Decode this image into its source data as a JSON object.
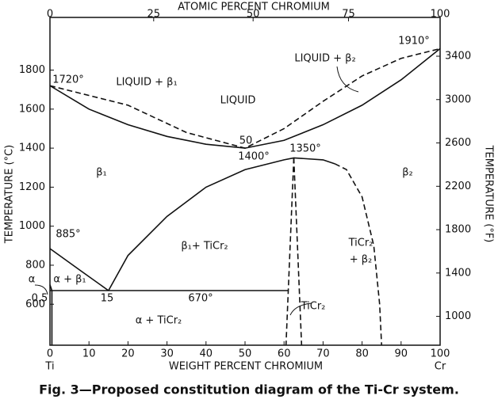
{
  "chart_data": {
    "type": "line",
    "title": "ATOMIC PERCENT CHROMIUM",
    "xlabel": "WEIGHT PERCENT CHROMIUM",
    "ylabel": "TEMPERATURE (°C)",
    "y2label": "TEMPERATURE (°F)",
    "caption": "Fig. 3—Proposed constitution diagram of the Ti-Cr system.",
    "x_end_labels": [
      "Ti",
      "Cr"
    ],
    "xlim": [
      0,
      100
    ],
    "xticks": [
      0,
      10,
      20,
      30,
      40,
      50,
      60,
      70,
      80,
      90,
      100
    ],
    "x2ticks": [
      0,
      25,
      50,
      75,
      100
    ],
    "ylim": [
      390,
      2070
    ],
    "yticks": [
      600,
      800,
      1000,
      1200,
      1400,
      1600,
      1800
    ],
    "y2lim": [
      734,
      3758
    ],
    "y2ticks": [
      1000,
      1400,
      1800,
      2200,
      2600,
      3000,
      3400
    ],
    "series": [
      {
        "color": "#111",
        "style": "solid",
        "x": [
          0,
          10,
          20,
          30,
          40,
          50,
          60,
          70,
          80,
          90,
          100
        ],
        "values": [
          1720,
          1600,
          1520,
          1460,
          1420,
          1400,
          1440,
          1520,
          1620,
          1750,
          1910
        ]
      },
      {
        "color": "#111",
        "style": "dashed",
        "x": [
          0,
          20,
          35,
          50,
          60,
          70,
          80,
          90,
          100
        ],
        "values": [
          1720,
          1620,
          1480,
          1400,
          1500,
          1640,
          1770,
          1860,
          1910
        ]
      },
      {
        "color": "#111",
        "style": "solid",
        "x": [
          15,
          20,
          30,
          40,
          50,
          60,
          62.5,
          70,
          73
        ],
        "values": [
          670,
          850,
          1050,
          1200,
          1290,
          1340,
          1350,
          1340,
          1320
        ]
      },
      {
        "color": "#111",
        "style": "dashed",
        "x": [
          73,
          76,
          80,
          83,
          84.5,
          85
        ],
        "values": [
          1320,
          1290,
          1150,
          900,
          600,
          390
        ]
      },
      {
        "color": "#111",
        "style": "solid",
        "x": [
          0,
          8,
          15
        ],
        "values": [
          885,
          770,
          670
        ]
      },
      {
        "color": "#111",
        "style": "solid",
        "x": [
          0,
          61
        ],
        "values": [
          670,
          670
        ]
      },
      {
        "color": "#111",
        "style": "solid",
        "x": [
          0.5,
          0.5,
          0
        ],
        "values": [
          390,
          670,
          700
        ]
      },
      {
        "color": "#111",
        "style": "dashed",
        "x": [
          62.5,
          60.5
        ],
        "values": [
          1350,
          390
        ]
      },
      {
        "color": "#111",
        "style": "dashed",
        "x": [
          62.5,
          64.5
        ],
        "values": [
          1350,
          390
        ]
      }
    ],
    "annotations": [
      "1720°",
      "LIQUID + β₁",
      "LIQUID",
      "LIQUID + β₂",
      "1910°",
      "50",
      "1400°",
      "1350°",
      "β₁",
      "β₂",
      "885°",
      "β₁+ TiCr₂",
      "TiCr₂",
      "+ β₂",
      "α",
      "α + β₁",
      "0.5",
      "15",
      "670°",
      "TiCr₂",
      "α + TiCr₂"
    ]
  }
}
